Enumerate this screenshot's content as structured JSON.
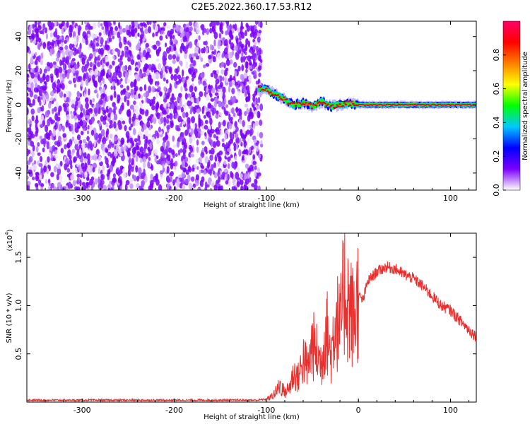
{
  "title": "C2E5.2022.360.17.53.R12",
  "chart_data": [
    {
      "type": "heatmap",
      "xlabel": "Height of straight line (km)",
      "ylabel": "Frequency (Hz)",
      "xlim": [
        -360,
        128
      ],
      "ylim": [
        -50,
        49
      ],
      "x_ticks": [
        "-300",
        "-200",
        "-100",
        "0",
        "100"
      ],
      "x_tick_values": [
        -300,
        -200,
        -100,
        0,
        100
      ],
      "y_ticks": [
        "-40",
        "-20",
        "0",
        "20",
        "40"
      ],
      "y_tick_values": [
        -40,
        -20,
        0,
        20,
        40
      ],
      "noise_region": [
        -360,
        -105
      ],
      "signal_track": [
        {
          "x": -108,
          "y": 10
        },
        {
          "x": -100,
          "y": 9
        },
        {
          "x": -90,
          "y": 6
        },
        {
          "x": -80,
          "y": 3
        },
        {
          "x": -70,
          "y": 0
        },
        {
          "x": -60,
          "y": 1
        },
        {
          "x": -50,
          "y": -1
        },
        {
          "x": -40,
          "y": 2
        },
        {
          "x": -30,
          "y": -1
        },
        {
          "x": -20,
          "y": 0
        },
        {
          "x": -10,
          "y": 1
        },
        {
          "x": 0,
          "y": 0
        },
        {
          "x": 50,
          "y": 0
        },
        {
          "x": 100,
          "y": 0
        },
        {
          "x": 128,
          "y": 0
        }
      ],
      "colorbar": {
        "label": "Normalized spectral amplitude",
        "range": [
          0,
          1
        ],
        "ticks": [
          "0.0",
          "0.2",
          "0.4",
          "0.6",
          "0.8"
        ],
        "tick_values": [
          0.0,
          0.2,
          0.4,
          0.6,
          0.8
        ],
        "colors": [
          "#ffffff",
          "#7b00ff",
          "#0000ff",
          "#00c8ff",
          "#00ff00",
          "#ffff00",
          "#ff8000",
          "#ff0000",
          "#ff0066"
        ]
      },
      "grid": false
    },
    {
      "type": "line",
      "xlabel": "Height of straight line (km)",
      "ylabel": "SNR (10 * v/v)",
      "y_scale_label": "(x10",
      "y_scale_exp": "4",
      "y_scale_close": ")",
      "xlim": [
        -360,
        128
      ],
      "ylim": [
        0,
        1.75
      ],
      "x_ticks": [
        "-300",
        "-200",
        "-100",
        "0",
        "100"
      ],
      "x_tick_values": [
        -300,
        -200,
        -100,
        0,
        100
      ],
      "y_ticks": [
        "0.5",
        "1.0",
        "1.5"
      ],
      "y_tick_values": [
        0.5,
        1.0,
        1.5
      ],
      "series": [
        {
          "color": "#e8302e",
          "x": [
            -360,
            -200,
            -110,
            -100,
            -95,
            -90,
            -85,
            -80,
            -75,
            -70,
            -65,
            -60,
            -55,
            -50,
            -45,
            -40,
            -35,
            -30,
            -25,
            -20,
            -15,
            -10,
            -5,
            0,
            5,
            10,
            15,
            20,
            30,
            40,
            50,
            60,
            70,
            80,
            90,
            100,
            110,
            120,
            128
          ],
          "y": [
            0.02,
            0.02,
            0.02,
            0.03,
            0.05,
            0.1,
            0.18,
            0.1,
            0.15,
            0.3,
            0.25,
            0.45,
            0.35,
            0.6,
            0.5,
            0.4,
            0.8,
            0.45,
            0.9,
            0.75,
            1.2,
            1.0,
            0.85,
            1.1,
            1.05,
            1.25,
            1.3,
            1.35,
            1.4,
            1.38,
            1.32,
            1.28,
            1.2,
            1.1,
            1.0,
            0.95,
            0.85,
            0.75,
            0.68
          ]
        }
      ],
      "grid": false
    }
  ]
}
